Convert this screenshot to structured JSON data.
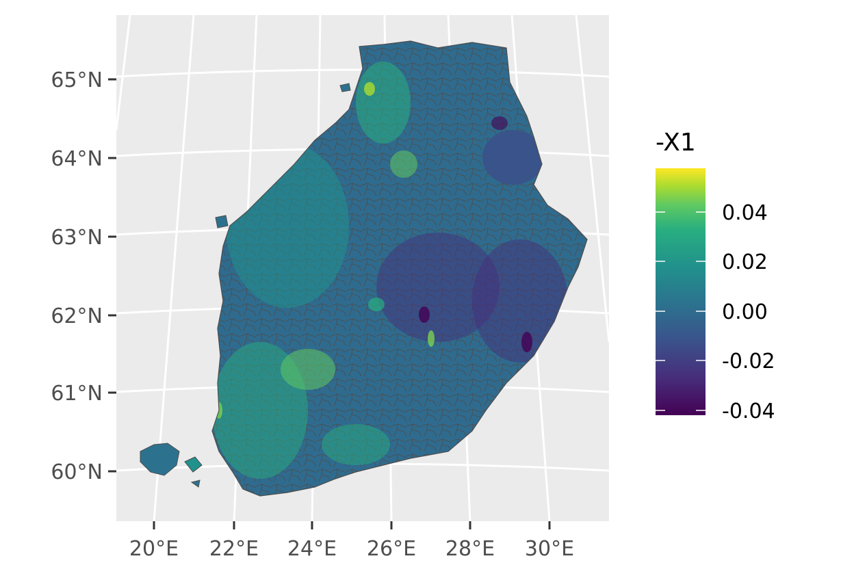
{
  "map": {
    "panel_background": "#ebebeb",
    "graticule_color": "#ffffff",
    "region_border_color": "#4d4d4d",
    "latitude_labels": [
      "65°N",
      "64°N",
      "63°N",
      "62°N",
      "61°N",
      "60°N"
    ],
    "longitude_labels": [
      "20°E",
      "22°E",
      "24°E",
      "26°E",
      "28°E",
      "30°E"
    ]
  },
  "legend": {
    "title": "-X1",
    "labels": [
      "0.04",
      "0.02",
      "0.00",
      "-0.02",
      "-0.04"
    ],
    "colormap": [
      "#fde725",
      "#7ad151",
      "#22a884",
      "#2a788e",
      "#414487",
      "#440154"
    ]
  }
}
